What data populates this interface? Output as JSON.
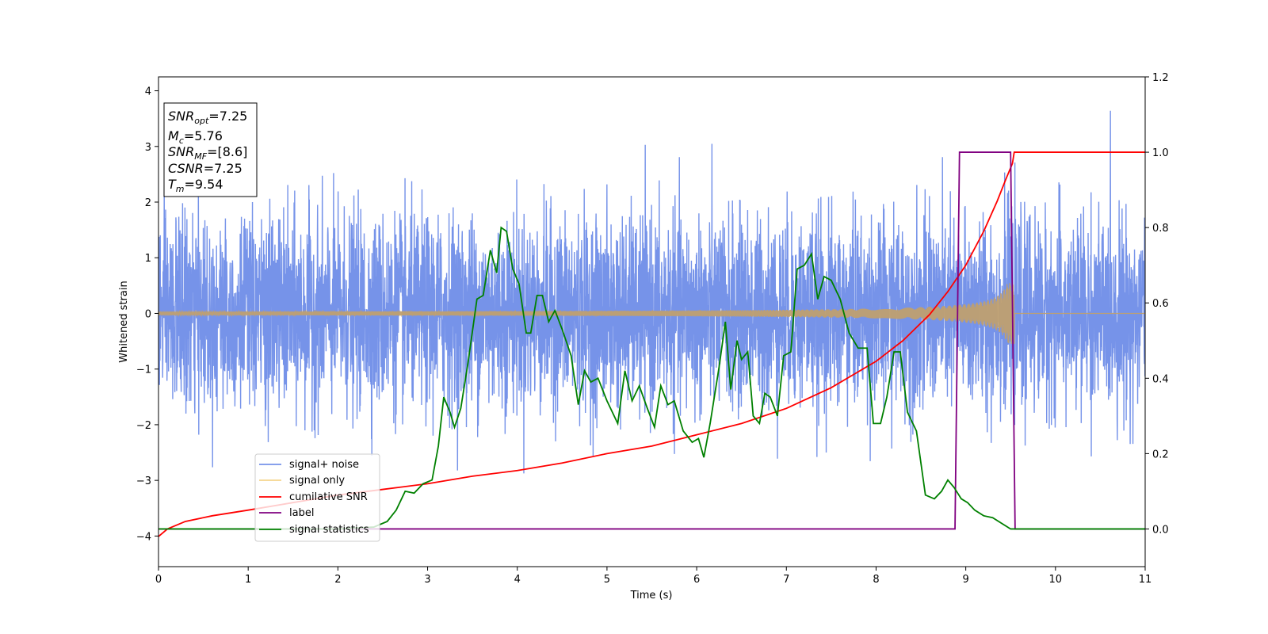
{
  "chart_data": {
    "type": "line",
    "xlabel": "Time (s)",
    "ylabel": "Whitened strain",
    "xlim": [
      0,
      11
    ],
    "ylim": [
      -4.55,
      4.25
    ],
    "y2lim": [
      -0.1,
      1.2
    ],
    "x_ticks": [
      0,
      1,
      2,
      3,
      4,
      5,
      6,
      7,
      8,
      9,
      10,
      11
    ],
    "y_ticks": [
      -4,
      -3,
      -2,
      -1,
      0,
      1,
      2,
      3,
      4
    ],
    "y_tick_labels": [
      "−4",
      "−3",
      "−2",
      "−1",
      "0",
      "1",
      "2",
      "3",
      "4"
    ],
    "y2_ticks": [
      0.0,
      0.2,
      0.4,
      0.6,
      0.8,
      1.0,
      1.2
    ],
    "y2_tick_labels": [
      "0.0",
      "0.2",
      "0.4",
      "0.6",
      "0.8",
      "1.0",
      "1.2"
    ],
    "grid": false,
    "legend_position": "lower-left",
    "info_box": {
      "snr_opt": {
        "base": "SNR",
        "sub": "opt",
        "value": "=7.25"
      },
      "mc": {
        "base": "M",
        "sub": "c",
        "value": "=5.76"
      },
      "snr_mf": {
        "base": "SNR",
        "sub": "MF",
        "value": "=[8.6]"
      },
      "csnr": {
        "base": "CSNR",
        "value": "=7.25"
      },
      "tm": {
        "base": "T",
        "sub": "m",
        "value": "=9.54"
      }
    },
    "series": [
      {
        "name": "signal+ noise",
        "color": "#4169e1",
        "axis": "left",
        "style": "noise",
        "noise_sigma": 0.85,
        "x_start": 0,
        "x_end": 11,
        "samples": 5000
      },
      {
        "name": "signal only",
        "color": "#f4d58d",
        "axis": "left",
        "style": "chirp",
        "x_start": 0,
        "merger_time": 9.54,
        "x_end": 11,
        "peak_amplitude": 0.55,
        "base_amplitude": 0.03
      },
      {
        "name": "cumilative SNR",
        "color": "#ff0000",
        "axis": "right",
        "x": [
          0.0,
          0.1,
          0.3,
          0.6,
          1.0,
          1.5,
          2.0,
          2.5,
          3.0,
          3.5,
          4.0,
          4.5,
          5.0,
          5.5,
          6.0,
          6.5,
          7.0,
          7.5,
          8.0,
          8.3,
          8.6,
          8.8,
          9.0,
          9.2,
          9.35,
          9.45,
          9.52,
          9.54,
          9.56,
          11.0
        ],
        "y": [
          -0.02,
          0.0,
          0.02,
          0.035,
          0.05,
          0.07,
          0.09,
          0.105,
          0.12,
          0.14,
          0.155,
          0.175,
          0.2,
          0.22,
          0.25,
          0.28,
          0.32,
          0.375,
          0.445,
          0.5,
          0.57,
          0.63,
          0.7,
          0.79,
          0.87,
          0.93,
          0.97,
          1.0,
          1.0,
          1.0
        ]
      },
      {
        "name": "label",
        "color": "#800080",
        "axis": "right",
        "x": [
          0.0,
          8.88,
          8.93,
          9.5,
          9.55,
          11.0
        ],
        "y": [
          0.0,
          0.0,
          1.0,
          1.0,
          0.0,
          0.0
        ]
      },
      {
        "name": "signal statistics",
        "color": "#008000",
        "axis": "right",
        "x": [
          0.0,
          0.5,
          1.0,
          1.5,
          2.0,
          2.4,
          2.55,
          2.65,
          2.75,
          2.85,
          2.95,
          3.05,
          3.12,
          3.18,
          3.25,
          3.3,
          3.37,
          3.45,
          3.55,
          3.62,
          3.7,
          3.77,
          3.82,
          3.88,
          3.95,
          4.02,
          4.1,
          4.15,
          4.22,
          4.28,
          4.35,
          4.42,
          4.5,
          4.6,
          4.68,
          4.75,
          4.82,
          4.9,
          5.0,
          5.12,
          5.2,
          5.28,
          5.36,
          5.45,
          5.53,
          5.6,
          5.68,
          5.75,
          5.85,
          5.95,
          6.02,
          6.08,
          6.15,
          6.25,
          6.32,
          6.38,
          6.45,
          6.5,
          6.57,
          6.63,
          6.7,
          6.76,
          6.82,
          6.9,
          6.97,
          7.05,
          7.12,
          7.2,
          7.28,
          7.35,
          7.42,
          7.5,
          7.6,
          7.7,
          7.8,
          7.9,
          7.97,
          8.05,
          8.12,
          8.2,
          8.27,
          8.35,
          8.45,
          8.55,
          8.65,
          8.73,
          8.8,
          8.87,
          8.95,
          9.02,
          9.1,
          9.2,
          9.3,
          9.4,
          9.5,
          9.6,
          10.0,
          10.5,
          11.0
        ],
        "y": [
          0.0,
          0.0,
          0.0,
          0.0,
          0.0,
          0.005,
          0.02,
          0.05,
          0.1,
          0.095,
          0.12,
          0.13,
          0.22,
          0.35,
          0.31,
          0.27,
          0.32,
          0.44,
          0.61,
          0.62,
          0.74,
          0.68,
          0.8,
          0.79,
          0.69,
          0.65,
          0.52,
          0.52,
          0.62,
          0.62,
          0.55,
          0.58,
          0.53,
          0.46,
          0.33,
          0.42,
          0.39,
          0.4,
          0.34,
          0.28,
          0.42,
          0.34,
          0.38,
          0.32,
          0.27,
          0.38,
          0.33,
          0.34,
          0.26,
          0.23,
          0.24,
          0.19,
          0.28,
          0.43,
          0.55,
          0.37,
          0.5,
          0.45,
          0.47,
          0.3,
          0.28,
          0.36,
          0.35,
          0.3,
          0.46,
          0.47,
          0.69,
          0.7,
          0.73,
          0.61,
          0.67,
          0.66,
          0.61,
          0.52,
          0.48,
          0.48,
          0.28,
          0.28,
          0.35,
          0.47,
          0.47,
          0.31,
          0.26,
          0.09,
          0.08,
          0.1,
          0.13,
          0.11,
          0.08,
          0.07,
          0.05,
          0.035,
          0.03,
          0.015,
          0.0,
          0.0,
          0.0,
          0.0,
          0.0
        ]
      }
    ]
  }
}
